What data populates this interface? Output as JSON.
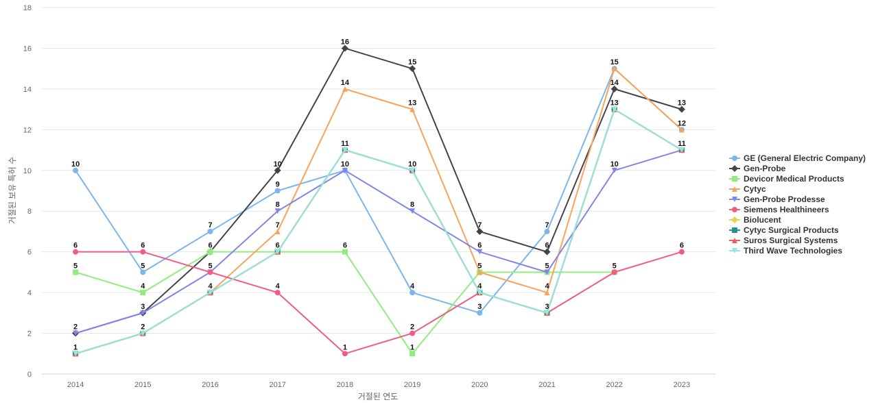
{
  "chart_data": {
    "type": "line",
    "title": "",
    "xlabel": "거절된 연도",
    "ylabel": "거절된 보유 특허 수",
    "ylim": [
      0,
      18
    ],
    "yticks": [
      0,
      2,
      4,
      6,
      8,
      10,
      12,
      14,
      16,
      18
    ],
    "categories": [
      "2014",
      "2015",
      "2016",
      "2017",
      "2018",
      "2019",
      "2020",
      "2021",
      "2022",
      "2023"
    ],
    "grid": true,
    "legend_position": "right",
    "series": [
      {
        "name": "GE (General Electric Company)",
        "color": "#7cb5ec",
        "marker": "circle",
        "values": [
          10,
          5,
          7,
          9,
          10,
          4,
          3,
          7,
          15,
          12
        ]
      },
      {
        "name": "Gen-Probe",
        "color": "#434348",
        "marker": "diamond",
        "values": [
          2,
          3,
          6,
          10,
          16,
          15,
          7,
          6,
          14,
          13
        ]
      },
      {
        "name": "Devicor Medical Products",
        "color": "#90ed7d",
        "marker": "square",
        "values": [
          5,
          4,
          6,
          6,
          6,
          1,
          5,
          5,
          5,
          null
        ]
      },
      {
        "name": "Cytyc",
        "color": "#f7a35c",
        "marker": "triangle",
        "values": [
          1,
          2,
          4,
          7,
          14,
          13,
          5,
          4,
          15,
          12
        ]
      },
      {
        "name": "Gen-Probe Prodesse",
        "color": "#8085e9",
        "marker": "triangle-down",
        "values": [
          2,
          3,
          5,
          8,
          10,
          8,
          6,
          5,
          10,
          11
        ]
      },
      {
        "name": "Siemens Healthineers",
        "color": "#f15c80",
        "marker": "circle",
        "values": [
          6,
          6,
          5,
          4,
          1,
          2,
          4,
          3,
          5,
          6
        ]
      },
      {
        "name": "Biolucent",
        "color": "#e4d354",
        "marker": "diamond",
        "values": [
          1,
          2,
          4,
          6,
          11,
          10,
          4,
          3,
          13,
          11
        ]
      },
      {
        "name": "Cytyc Surgical Products",
        "color": "#2b908f",
        "marker": "square",
        "values": [
          1,
          2,
          4,
          6,
          11,
          10,
          4,
          3,
          13,
          11
        ]
      },
      {
        "name": "Suros Surgical Systems",
        "color": "#f45b5b",
        "marker": "triangle",
        "values": [
          1,
          2,
          4,
          6,
          11,
          10,
          4,
          3,
          13,
          11
        ]
      },
      {
        "name": "Third Wave Technologies",
        "color": "#91e8e1",
        "marker": "triangle-down",
        "values": [
          1,
          2,
          4,
          6,
          11,
          10,
          4,
          3,
          13,
          11
        ]
      }
    ],
    "data_labels": [
      {
        "category": "2014",
        "values": [
          10,
          6,
          5,
          2,
          1
        ]
      },
      {
        "category": "2015",
        "values": [
          6,
          5,
          4,
          3,
          2
        ]
      },
      {
        "category": "2016",
        "values": [
          7,
          6,
          5,
          4
        ]
      },
      {
        "category": "2017",
        "values": [
          10,
          9,
          8,
          7,
          6,
          4
        ]
      },
      {
        "category": "2018",
        "values": [
          16,
          14,
          11,
          10,
          6,
          1
        ]
      },
      {
        "category": "2019",
        "values": [
          15,
          13,
          10,
          8,
          4,
          2,
          1
        ]
      },
      {
        "category": "2020",
        "values": [
          7,
          6,
          5,
          4,
          3
        ]
      },
      {
        "category": "2021",
        "values": [
          7,
          6,
          5,
          4,
          3
        ]
      },
      {
        "category": "2022",
        "values": [
          15,
          14,
          13,
          10,
          5
        ]
      },
      {
        "category": "2023",
        "values": [
          13,
          12,
          11,
          6
        ]
      }
    ]
  }
}
